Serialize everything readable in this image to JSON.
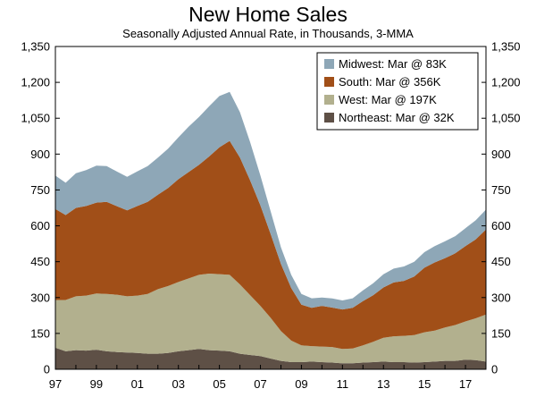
{
  "chart_data": {
    "type": "area",
    "stacked": true,
    "title": "New Home Sales",
    "subtitle": "Seasonally Adjusted Annual Rate, in Thousands, 3-MMA",
    "xlabel": "",
    "ylabel": "",
    "ylim": [
      0,
      1350
    ],
    "y_ticks": [
      0,
      150,
      300,
      450,
      600,
      750,
      900,
      1050,
      1200,
      1350
    ],
    "y_tick_labels": [
      "0",
      "150",
      "300",
      "450",
      "600",
      "750",
      "900",
      "1,050",
      "1,200",
      "1,350"
    ],
    "xlim": [
      1997,
      2018
    ],
    "x_ticks": [
      1997,
      1999,
      2001,
      2003,
      2005,
      2007,
      2009,
      2011,
      2013,
      2015,
      2017
    ],
    "x_tick_labels": [
      "97",
      "99",
      "01",
      "03",
      "05",
      "07",
      "09",
      "11",
      "13",
      "15",
      "17"
    ],
    "grid": false,
    "legend_position": "top-right",
    "x": [
      1997.0,
      1997.5,
      1998.0,
      1998.5,
      1999.0,
      1999.5,
      2000.0,
      2000.5,
      2001.0,
      2001.5,
      2002.0,
      2002.5,
      2003.0,
      2003.5,
      2004.0,
      2004.5,
      2005.0,
      2005.5,
      2006.0,
      2006.5,
      2007.0,
      2007.5,
      2008.0,
      2008.5,
      2009.0,
      2009.5,
      2010.0,
      2010.5,
      2011.0,
      2011.5,
      2012.0,
      2012.5,
      2013.0,
      2013.5,
      2014.0,
      2014.5,
      2015.0,
      2015.5,
      2016.0,
      2016.5,
      2017.0,
      2017.5,
      2018.0
    ],
    "series": [
      {
        "name": "Northeast",
        "legend": "Northeast: Mar @ 32K",
        "color": "#5e5046",
        "values": [
          90,
          75,
          80,
          78,
          82,
          75,
          72,
          70,
          68,
          65,
          65,
          68,
          75,
          80,
          85,
          80,
          78,
          75,
          65,
          60,
          55,
          45,
          35,
          30,
          30,
          32,
          30,
          28,
          25,
          25,
          28,
          30,
          32,
          30,
          30,
          28,
          30,
          32,
          35,
          35,
          40,
          38,
          32
        ]
      },
      {
        "name": "West",
        "legend": "West: Mar @ 197K",
        "color": "#b2b08e",
        "values": [
          200,
          215,
          225,
          230,
          235,
          240,
          240,
          235,
          240,
          250,
          270,
          280,
          290,
          300,
          310,
          320,
          320,
          320,
          290,
          250,
          210,
          170,
          125,
          90,
          70,
          65,
          65,
          65,
          60,
          62,
          72,
          85,
          100,
          108,
          110,
          115,
          125,
          130,
          140,
          150,
          160,
          175,
          197
        ]
      },
      {
        "name": "South",
        "legend": "South: Mar @ 356K",
        "color": "#a14f18",
        "values": [
          380,
          355,
          370,
          375,
          380,
          385,
          370,
          360,
          375,
          385,
          395,
          410,
          430,
          445,
          460,
          490,
          530,
          560,
          530,
          480,
          420,
          350,
          280,
          220,
          170,
          160,
          170,
          165,
          165,
          170,
          185,
          195,
          210,
          225,
          230,
          245,
          270,
          285,
          290,
          300,
          315,
          330,
          356
        ]
      },
      {
        "name": "Midwest",
        "legend": "Midwest: Mar @ 83K",
        "color": "#8ea7b7",
        "values": [
          140,
          135,
          145,
          150,
          155,
          150,
          145,
          140,
          145,
          150,
          155,
          165,
          175,
          190,
          200,
          210,
          215,
          205,
          190,
          160,
          125,
          95,
          70,
          55,
          45,
          40,
          35,
          38,
          38,
          40,
          45,
          50,
          55,
          58,
          60,
          62,
          65,
          68,
          70,
          72,
          75,
          80,
          83
        ]
      }
    ]
  }
}
